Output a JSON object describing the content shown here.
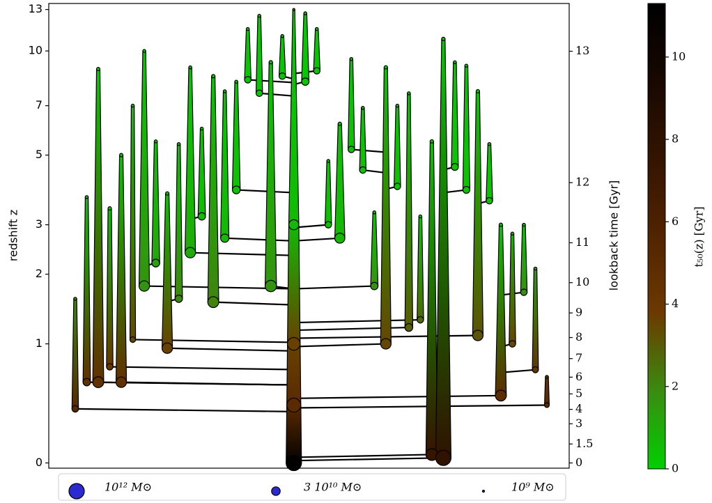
{
  "chart_data": {
    "type": "merger-tree",
    "ylabel": "redshift z",
    "y2label": "lookback time [Gyr]",
    "colorbar_label": "t₅₀(z) [Gyr]",
    "yscale": "log1p",
    "ylim": [
      -0.03,
      13.5
    ],
    "yticks": [
      0,
      1,
      2,
      3,
      5,
      7,
      10,
      13
    ],
    "y2ticks": [
      0,
      1.5,
      3,
      4,
      5,
      6,
      7,
      8,
      9,
      10,
      11,
      12,
      13
    ],
    "clim": [
      0,
      11.3
    ],
    "cticks": [
      0,
      2,
      4,
      6,
      8,
      10
    ],
    "colormap": [
      "#00d000",
      "#3a8c10",
      "#6c3a00",
      "#522400",
      "#341400",
      "#180800",
      "#000000"
    ],
    "legend": [
      {
        "label": "10¹² M⊙",
        "logm": 12,
        "color": "#2a2ad0"
      },
      {
        "label": "3 10¹⁰ M⊙",
        "logm": 10.477,
        "color": "#2a2ad0"
      },
      {
        "label": "10⁹ M⊙",
        "logm": 9,
        "color": "#2a2ad0"
      }
    ],
    "branches": [
      {
        "z": [
          1.6,
          0.37
        ],
        "logm": [
          9.2,
          10.0
        ],
        "t50": [
          2,
          5.2
        ],
        "into": 19
      },
      {
        "z": [
          3.7,
          0.6
        ],
        "logm": [
          9.2,
          10.2
        ],
        "t50": [
          0.4,
          4.5
        ],
        "into": 19
      },
      {
        "z": [
          8.9,
          0.6
        ],
        "logm": [
          9.3,
          11.0
        ],
        "t50": [
          0.3,
          4.5
        ],
        "into": 19
      },
      {
        "z": [
          3.4,
          0.75
        ],
        "logm": [
          9.3,
          10.0
        ],
        "t50": [
          0.4,
          4.2
        ],
        "into": 19
      },
      {
        "z": [
          5.0,
          0.6
        ],
        "logm": [
          9.3,
          10.9
        ],
        "t50": [
          0.4,
          4.5
        ],
        "into": 19
      },
      {
        "z": [
          7.0,
          1.05
        ],
        "logm": [
          9.2,
          9.8
        ],
        "t50": [
          0.3,
          3.4
        ],
        "into": 19
      },
      {
        "z": [
          10,
          1.8
        ],
        "logm": [
          9.2,
          10.9
        ],
        "t50": [
          0.3,
          1.7
        ],
        "into": 19
      },
      {
        "z": [
          5.5,
          2.2
        ],
        "logm": [
          9.2,
          10.3
        ],
        "t50": [
          0.4,
          1.2
        ],
        "into": 6
      },
      {
        "z": [
          3.8,
          0.95
        ],
        "logm": [
          9.3,
          10.9
        ],
        "t50": [
          0.4,
          3.6
        ],
        "into": 19
      },
      {
        "z": [
          5.4,
          1.6
        ],
        "logm": [
          9.2,
          10.2
        ],
        "t50": [
          0.4,
          2
        ],
        "into": 8
      },
      {
        "z": [
          9.0,
          2.4
        ],
        "logm": [
          9.2,
          10.9
        ],
        "t50": [
          0.3,
          1
        ],
        "into": 19
      },
      {
        "z": [
          6.0,
          3.2
        ],
        "logm": [
          9.2,
          10.2
        ],
        "t50": [
          0.4,
          0.5
        ],
        "into": 10
      },
      {
        "z": [
          8.5,
          1.55
        ],
        "logm": [
          9.3,
          11.0
        ],
        "t50": [
          0.3,
          2.1
        ],
        "into": 19
      },
      {
        "z": [
          7.7,
          2.7
        ],
        "logm": [
          9.2,
          10.4
        ],
        "t50": [
          0.3,
          0.7
        ],
        "into": 19
      },
      {
        "z": [
          8.2,
          3.9
        ],
        "logm": [
          9.2,
          10.3
        ],
        "t50": [
          0.3,
          0.4
        ],
        "into": 19
      },
      {
        "z": [
          11.5,
          8.3
        ],
        "logm": [
          9.2,
          10.0
        ],
        "t50": [
          0.2,
          0.3
        ],
        "into": 19
      },
      {
        "z": [
          12.5,
          7.6
        ],
        "logm": [
          9.2,
          10.0
        ],
        "t50": [
          0.2,
          0.3
        ],
        "into": 19
      },
      {
        "z": [
          9.3,
          1.8
        ],
        "logm": [
          9.3,
          11.1
        ],
        "t50": [
          0.3,
          1.7
        ],
        "into": 19
      },
      {
        "z": [
          11.0,
          8.5
        ],
        "logm": [
          9.2,
          10.0
        ],
        "t50": [
          0.2,
          0.3
        ],
        "into": 19
      },
      {
        "z": [
          13,
          3,
          1,
          0.4,
          0
        ],
        "logm": [
          9.0,
          10.8,
          11.4,
          11.7,
          12.0
        ],
        "t50": [
          0.2,
          0.6,
          3.6,
          5.1,
          11.1
        ]
      },
      {
        "z": [
          12.7,
          8.2
        ],
        "logm": [
          9.2,
          10.2
        ],
        "t50": [
          0.2,
          0.3
        ],
        "into": 19
      },
      {
        "z": [
          11.5,
          8.8
        ],
        "logm": [
          9.2,
          10.0
        ],
        "t50": [
          0.2,
          0.3
        ],
        "into": 19
      },
      {
        "z": [
          4.8,
          3.0
        ],
        "logm": [
          9.2,
          10.0
        ],
        "t50": [
          0.4,
          0.5
        ],
        "into": 19
      },
      {
        "z": [
          6.2,
          2.7
        ],
        "logm": [
          9.3,
          10.8
        ],
        "t50": [
          0.4,
          0.7
        ],
        "into": 19
      },
      {
        "z": [
          9.5,
          5.2
        ],
        "logm": [
          9.2,
          10.0
        ],
        "t50": [
          0.3,
          0.4
        ],
        "into": 27
      },
      {
        "z": [
          6.9,
          4.5
        ],
        "logm": [
          9.2,
          10.0
        ],
        "t50": [
          0.3,
          0.4
        ],
        "into": 27
      },
      {
        "z": [
          3.3,
          1.8
        ],
        "logm": [
          9.2,
          10.2
        ],
        "t50": [
          0.4,
          1.7
        ],
        "into": 19
      },
      {
        "z": [
          9.0,
          1.0
        ],
        "logm": [
          9.3,
          10.9
        ],
        "t50": [
          0.3,
          3.5
        ],
        "into": 19
      },
      {
        "z": [
          7.0,
          4.0
        ],
        "logm": [
          9.2,
          10.0
        ],
        "t50": [
          0.3,
          0.4
        ],
        "into": 27
      },
      {
        "z": [
          7.6,
          1.2
        ],
        "logm": [
          9.2,
          10.3
        ],
        "t50": [
          0.3,
          3
        ],
        "into": 19
      },
      {
        "z": [
          3.2,
          1.3
        ],
        "logm": [
          9.2,
          10.0
        ],
        "t50": [
          0.4,
          2.7
        ],
        "into": 19
      },
      {
        "z": [
          5.5,
          0.05
        ],
        "logm": [
          9.3,
          11.2
        ],
        "t50": [
          0.4,
          7.5
        ],
        "into": 19
      },
      {
        "z": [
          10.8,
          0.03
        ],
        "logm": [
          9.3,
          12.0
        ],
        "t50": [
          0.3,
          7.8
        ],
        "into": 19
      },
      {
        "z": [
          9.3,
          4.6
        ],
        "logm": [
          9.2,
          10.1
        ],
        "t50": [
          0.3,
          0.4
        ],
        "into": 32
      },
      {
        "z": [
          9.1,
          3.9
        ],
        "logm": [
          9.2,
          10.1
        ],
        "t50": [
          0.3,
          0.4
        ],
        "into": 32
      },
      {
        "z": [
          7.7,
          1.1
        ],
        "logm": [
          9.3,
          10.9
        ],
        "t50": [
          0.3,
          3.2
        ],
        "into": 19
      },
      {
        "z": [
          5.4,
          3.6
        ],
        "logm": [
          9.2,
          10.0
        ],
        "t50": [
          0.4,
          0.4
        ],
        "into": 35
      },
      {
        "z": [
          3.0,
          0.48
        ],
        "logm": [
          9.3,
          11.0
        ],
        "t50": [
          0.4,
          4.9
        ],
        "into": 19
      },
      {
        "z": [
          2.8,
          1.0
        ],
        "logm": [
          9.2,
          10.0
        ],
        "t50": [
          0.9,
          3.5
        ],
        "into": 37
      },
      {
        "z": [
          3.0,
          1.7
        ],
        "logm": [
          9.2,
          10.0
        ],
        "t50": [
          0.4,
          1.8
        ],
        "into": 37
      },
      {
        "z": [
          2.1,
          0.72
        ],
        "logm": [
          9.2,
          9.9
        ],
        "t50": [
          1.3,
          4.3
        ],
        "into": 37
      },
      {
        "z": [
          0.65,
          0.4
        ],
        "logm": [
          9.2,
          9.6
        ],
        "t50": [
          4.4,
          5.1
        ],
        "into": 19
      }
    ]
  }
}
